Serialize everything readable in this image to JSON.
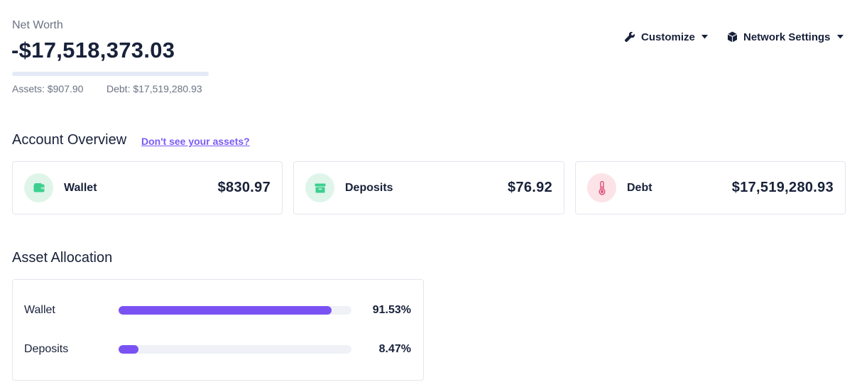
{
  "net_worth": {
    "label": "Net Worth",
    "value": "-$17,518,373.03",
    "assets_text": "Assets: $907.90",
    "debt_text": "Debt: $17,519,280.93"
  },
  "header": {
    "customize_label": "Customize",
    "network_label": "Network Settings",
    "customize_icon": "wrench-icon",
    "network_icon": "cube-icon"
  },
  "overview": {
    "title": "Account Overview",
    "help_link": "Don't see your assets?",
    "cards": [
      {
        "label": "Wallet",
        "value": "$830.97",
        "icon": "wallet-icon",
        "color": "#3ccf8e"
      },
      {
        "label": "Deposits",
        "value": "$76.92",
        "icon": "archive-box-icon",
        "color": "#3ccf8e"
      },
      {
        "label": "Debt",
        "value": "$17,519,280.93",
        "icon": "thermometer-icon",
        "color": "#e0567a"
      }
    ]
  },
  "allocation": {
    "title": "Asset Allocation",
    "rows": [
      {
        "label": "Wallet",
        "percent_text": "91.53%",
        "fraction": 0.9153
      },
      {
        "label": "Deposits",
        "percent_text": "8.47%",
        "fraction": 0.0847
      }
    ],
    "bar_color": "#7a52f4"
  },
  "colors": {
    "accent": "#7a5af5",
    "text_primary": "#18213a",
    "text_secondary": "#6b7382"
  }
}
